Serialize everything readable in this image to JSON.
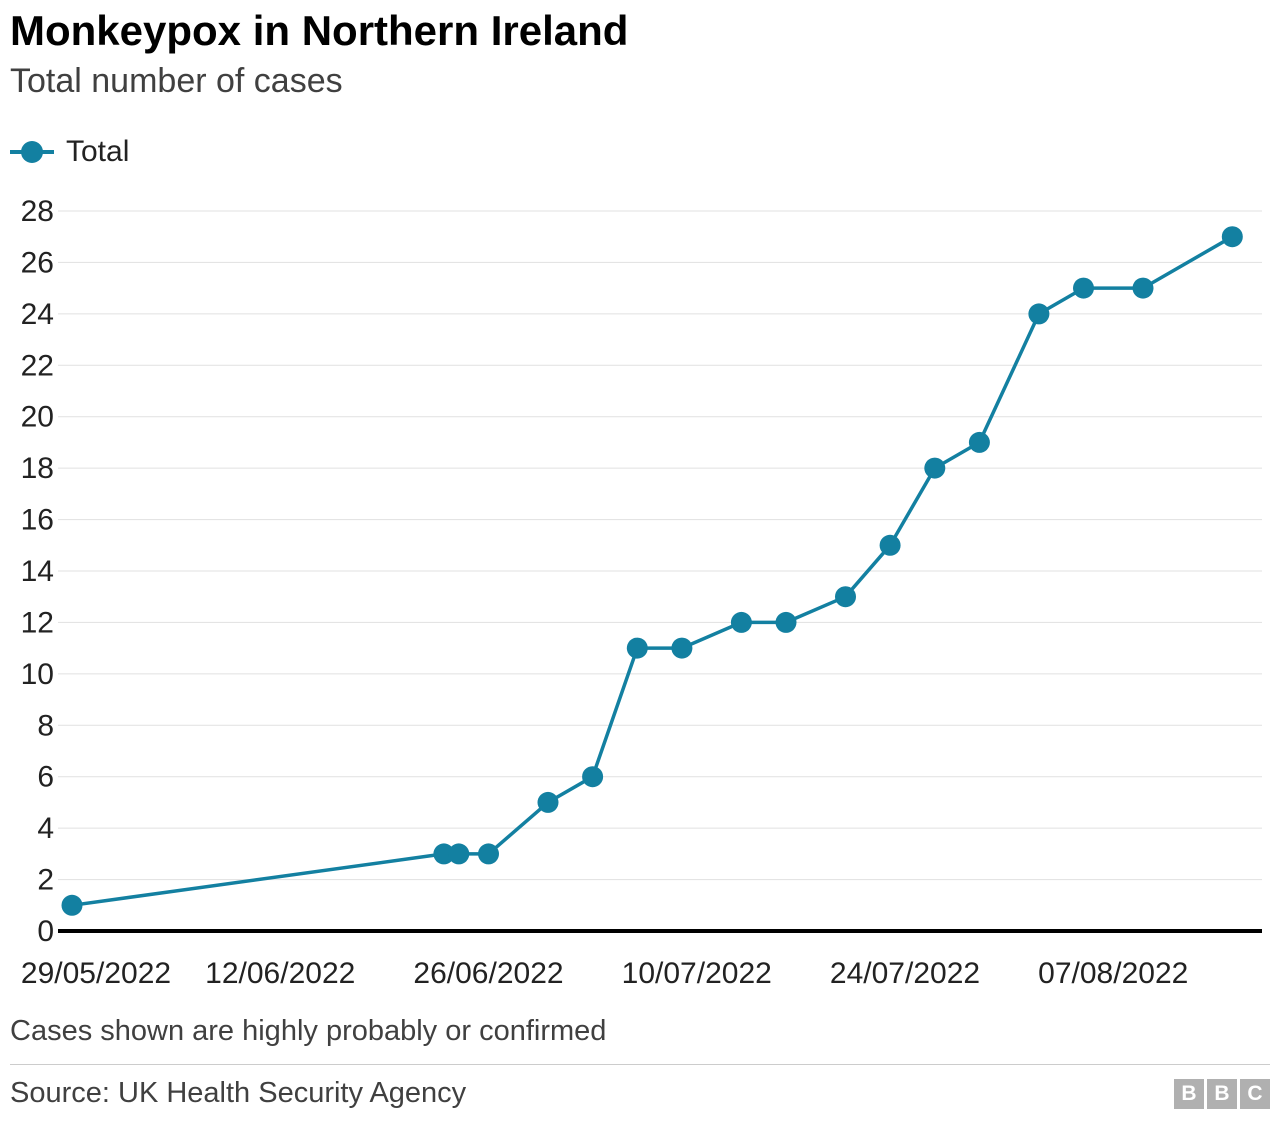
{
  "header": {
    "title": "Monkeypox in Northern Ireland",
    "subtitle": "Total number of cases"
  },
  "legend": {
    "label": "Total",
    "color": "#1380A1"
  },
  "footnote": "Cases shown are highly probably or confirmed",
  "footer": {
    "source": "Source: UK Health Security Agency",
    "logo_letters": [
      "B",
      "B",
      "C"
    ]
  },
  "chart_data": {
    "type": "line",
    "title": "Monkeypox in Northern Ireland",
    "subtitle": "Total number of cases",
    "xlabel": "",
    "ylabel": "Total number of cases",
    "ylim": [
      0,
      28
    ],
    "xlim_days": [
      0,
      80
    ],
    "grid": "horizontal",
    "legend_position": "top-left",
    "y_ticks": [
      0,
      2,
      4,
      6,
      8,
      10,
      12,
      14,
      16,
      18,
      20,
      22,
      24,
      26,
      28
    ],
    "x_ticks": [
      {
        "label": "29/05/2022",
        "day": 0
      },
      {
        "label": "12/06/2022",
        "day": 14
      },
      {
        "label": "26/06/2022",
        "day": 28
      },
      {
        "label": "10/07/2022",
        "day": 42
      },
      {
        "label": "24/07/2022",
        "day": 56
      },
      {
        "label": "07/08/2022",
        "day": 70
      }
    ],
    "series": [
      {
        "name": "Total",
        "color": "#1380A1",
        "points": [
          {
            "date": "29/05/2022",
            "day": 0,
            "value": 1
          },
          {
            "date": "23/06/2022",
            "day": 25,
            "value": 3
          },
          {
            "date": "24/06/2022",
            "day": 26,
            "value": 3
          },
          {
            "date": "26/06/2022",
            "day": 28,
            "value": 3
          },
          {
            "date": "30/06/2022",
            "day": 32,
            "value": 5
          },
          {
            "date": "03/07/2022",
            "day": 35,
            "value": 6
          },
          {
            "date": "06/07/2022",
            "day": 38,
            "value": 11
          },
          {
            "date": "09/07/2022",
            "day": 41,
            "value": 11
          },
          {
            "date": "13/07/2022",
            "day": 45,
            "value": 12
          },
          {
            "date": "16/07/2022",
            "day": 48,
            "value": 12
          },
          {
            "date": "20/07/2022",
            "day": 52,
            "value": 13
          },
          {
            "date": "23/07/2022",
            "day": 55,
            "value": 15
          },
          {
            "date": "26/07/2022",
            "day": 58,
            "value": 18
          },
          {
            "date": "29/07/2022",
            "day": 61,
            "value": 19
          },
          {
            "date": "02/08/2022",
            "day": 65,
            "value": 24
          },
          {
            "date": "05/08/2022",
            "day": 68,
            "value": 25
          },
          {
            "date": "09/08/2022",
            "day": 72,
            "value": 25
          },
          {
            "date": "15/08/2022",
            "day": 78,
            "value": 27
          }
        ]
      }
    ]
  }
}
